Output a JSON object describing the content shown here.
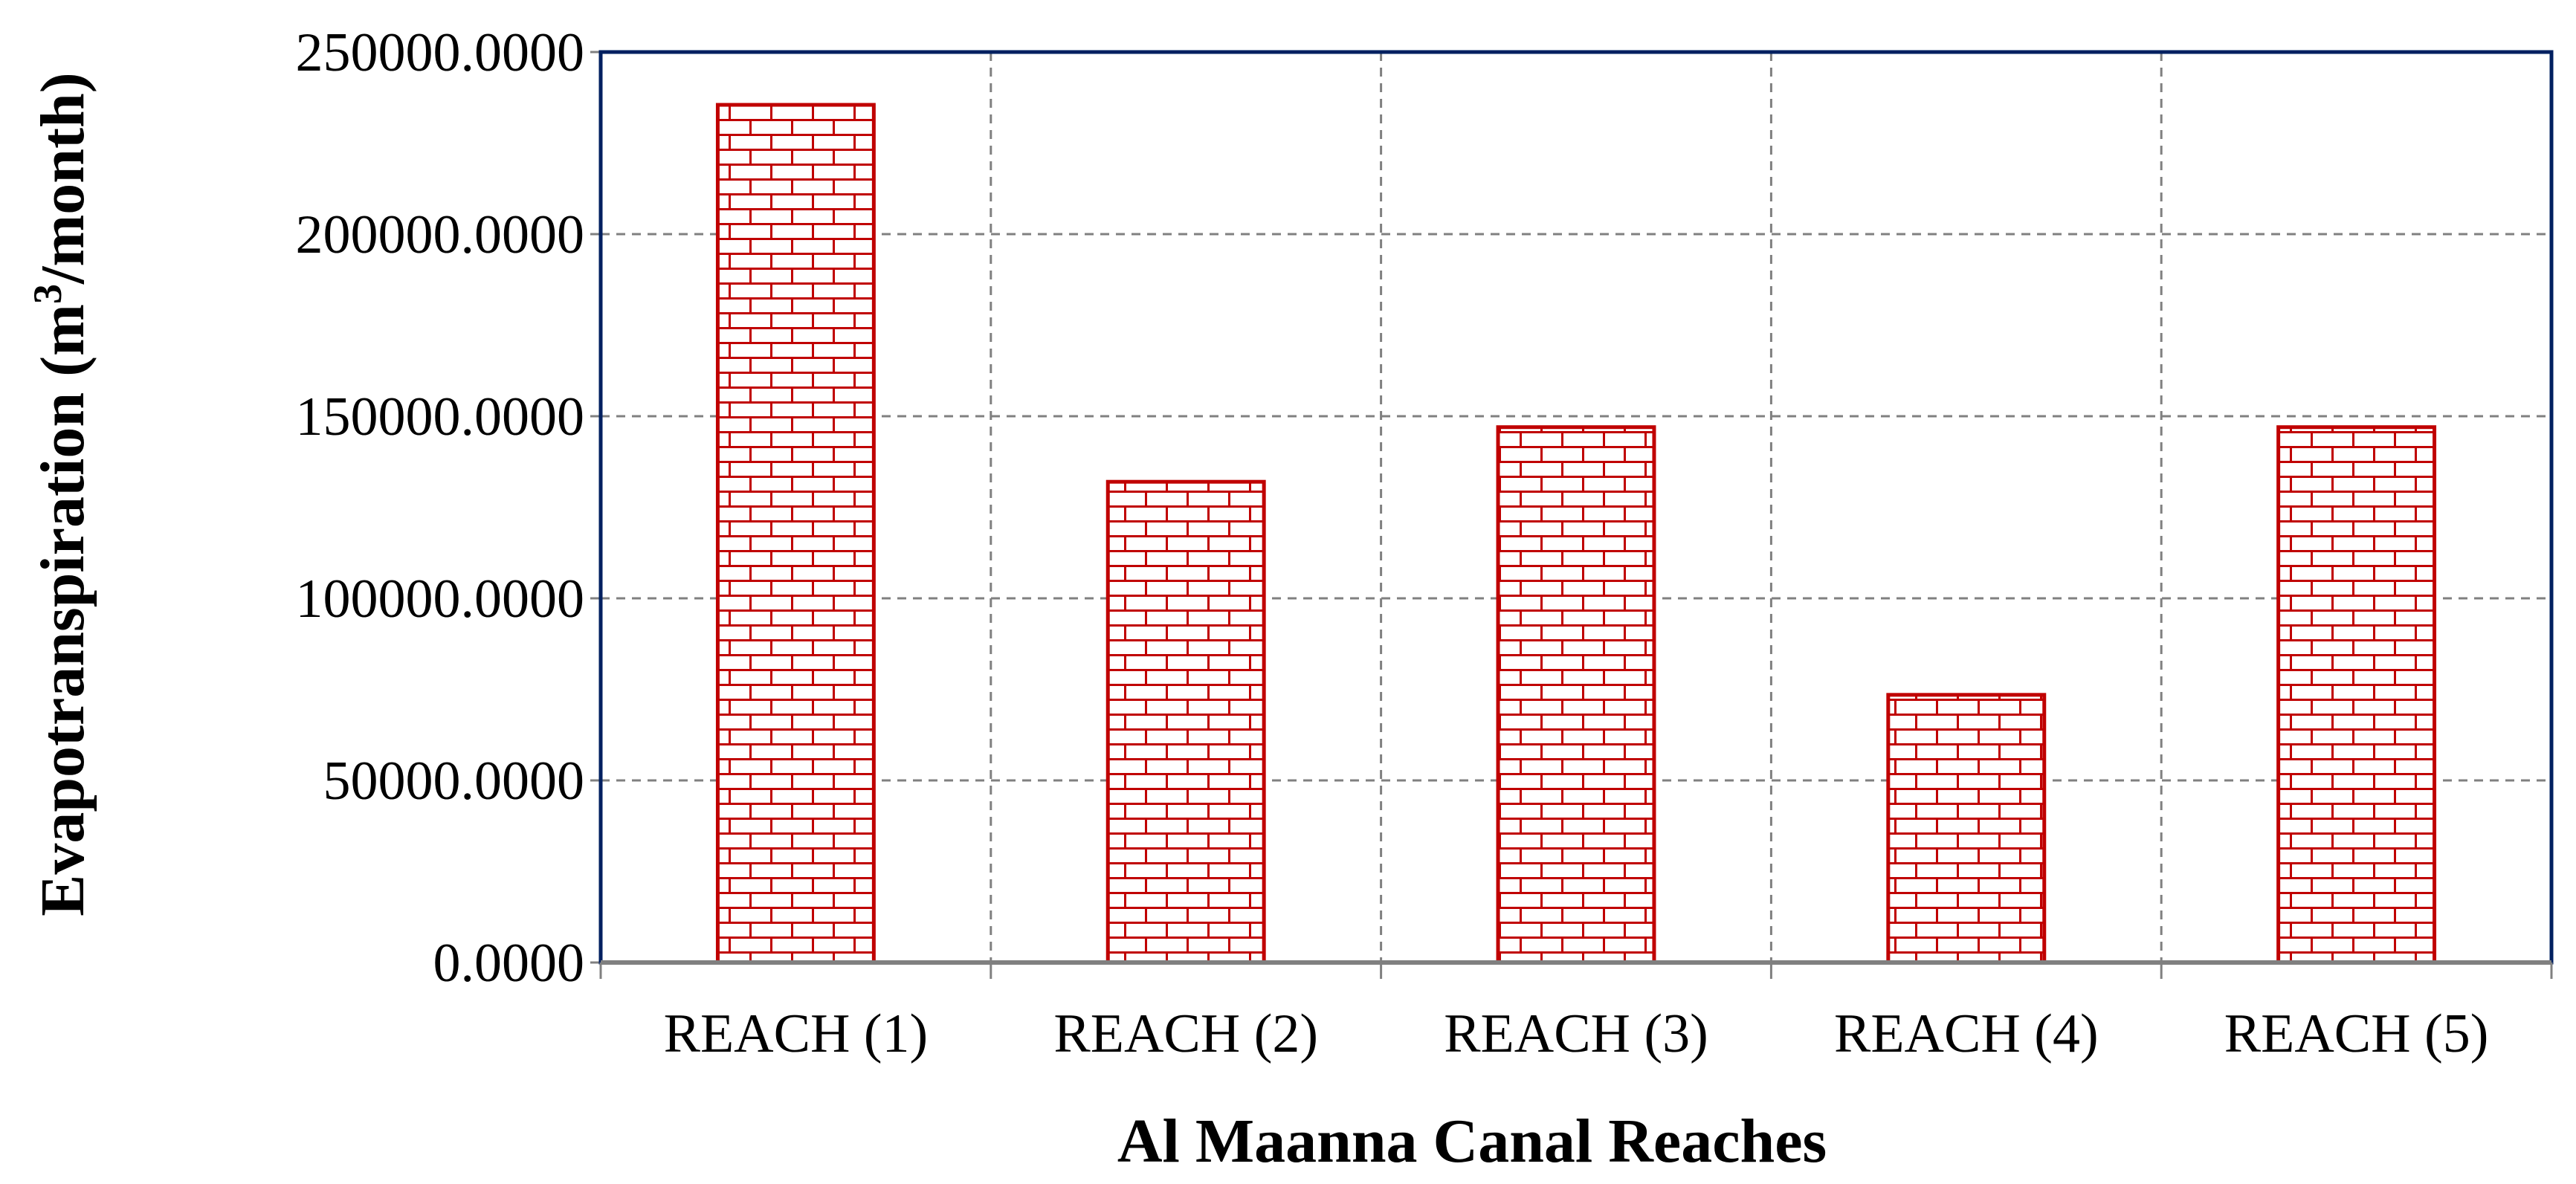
{
  "chart_data": {
    "type": "bar",
    "categories": [
      "REACH (1)",
      "REACH (2)",
      "REACH (3)",
      "REACH (4)",
      "REACH (5)"
    ],
    "values": [
      235500,
      132000,
      147000,
      73500,
      147000
    ],
    "xlabel": "Al Maanna Canal Reaches",
    "ylabel": {
      "prefix": "Evapotranspiration (m",
      "superscript": "3",
      "suffix": "/month)"
    },
    "ylim": [
      0,
      250000
    ],
    "yticks": [
      "0.0000",
      "50000.0000",
      "100000.0000",
      "150000.0000",
      "200000.0000",
      "250000.0000"
    ],
    "grid": true,
    "legend": "none",
    "colors": {
      "bar_stroke": "#c00000",
      "bar_fill": "#ffffff",
      "plot_border": "#002060",
      "grid": "#808080",
      "axis": "#808080"
    }
  }
}
